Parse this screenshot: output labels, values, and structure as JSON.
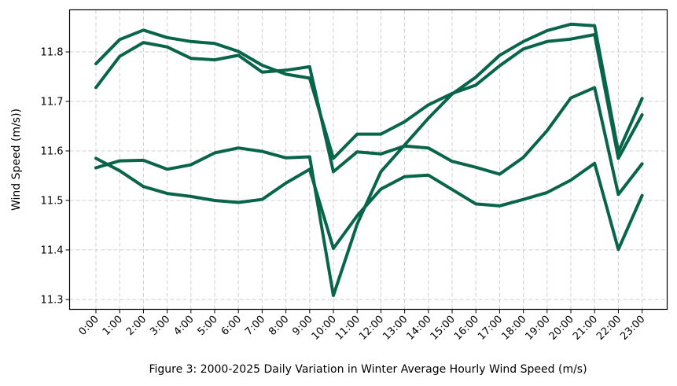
{
  "chart_data": {
    "type": "line",
    "xlabel": "Figure 3: 2000-2025 Daily Variation in Winter Average Hourly Wind Speed (m/s)",
    "ylabel": "Wind Speed (m/s))",
    "categories": [
      "0:00",
      "1:00",
      "2:00",
      "3:00",
      "4:00",
      "5:00",
      "6:00",
      "7:00",
      "8:00",
      "9:00",
      "10:00",
      "11:00",
      "12:00",
      "13:00",
      "14:00",
      "15:00",
      "16:00",
      "17:00",
      "18:00",
      "19:00",
      "20:00",
      "21:00",
      "22:00",
      "23:00"
    ],
    "ylim": [
      11.28,
      11.885
    ],
    "yticks": [
      11.3,
      11.4,
      11.5,
      11.6,
      11.7,
      11.8
    ],
    "grid": true,
    "line_color": "#08654a",
    "series": [
      {
        "values": [
          11.776,
          11.825,
          11.844,
          11.829,
          11.821,
          11.817,
          11.801,
          11.773,
          11.755,
          11.747,
          11.585,
          11.634,
          11.634,
          11.659,
          11.693,
          11.716,
          11.733,
          11.772,
          11.806,
          11.821,
          11.826,
          11.835,
          11.585,
          11.673
        ]
      },
      {
        "values": [
          11.728,
          11.791,
          11.819,
          11.81,
          11.787,
          11.784,
          11.793,
          11.759,
          11.763,
          11.77,
          11.558,
          11.598,
          11.594,
          11.61,
          11.606,
          11.579,
          11.567,
          11.553,
          11.587,
          11.641,
          11.707,
          11.728,
          11.512,
          11.574
        ]
      },
      {
        "values": [
          11.566,
          11.58,
          11.581,
          11.563,
          11.572,
          11.596,
          11.606,
          11.599,
          11.586,
          11.588,
          11.308,
          11.452,
          11.558,
          11.612,
          11.666,
          11.715,
          11.749,
          11.793,
          11.821,
          11.843,
          11.856,
          11.853,
          11.598,
          11.706
        ]
      },
      {
        "values": [
          11.585,
          11.56,
          11.528,
          11.514,
          11.508,
          11.5,
          11.496,
          11.502,
          11.535,
          11.563,
          11.403,
          11.469,
          11.523,
          11.548,
          11.551,
          11.522,
          11.493,
          11.489,
          11.502,
          11.516,
          11.541,
          11.575,
          11.401,
          11.51
        ]
      }
    ]
  }
}
